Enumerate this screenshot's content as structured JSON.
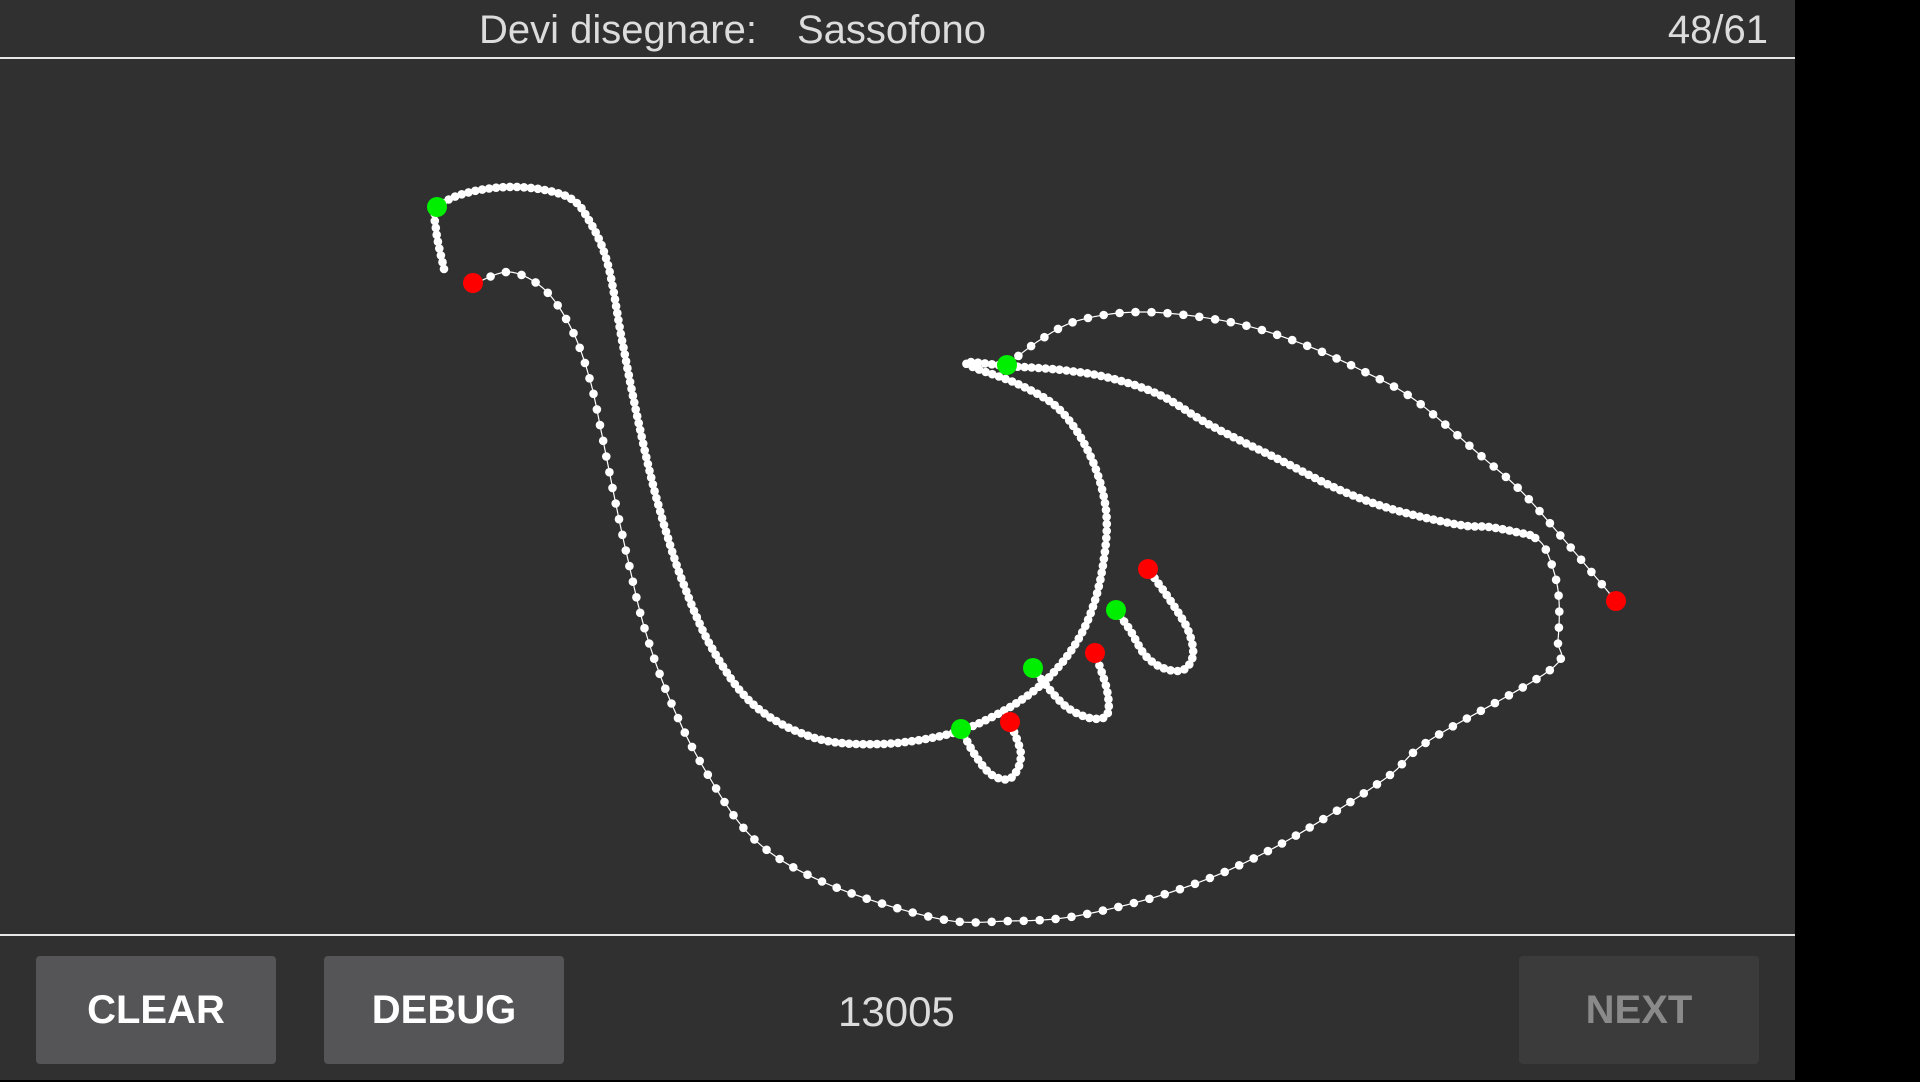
{
  "header": {
    "prompt_label": "Devi disegnare:",
    "prompt_word": "Sassofono",
    "progress": "48/61"
  },
  "footer": {
    "clear_label": "CLEAR",
    "debug_label": "DEBUG",
    "score": "13005",
    "next_label": "NEXT",
    "next_enabled": false
  },
  "colors": {
    "background": "#303030",
    "stroke": "#ffffff",
    "stroke_start": "#00ee00",
    "stroke_end": "#ff0000",
    "divider": "#e6e6e6"
  }
}
